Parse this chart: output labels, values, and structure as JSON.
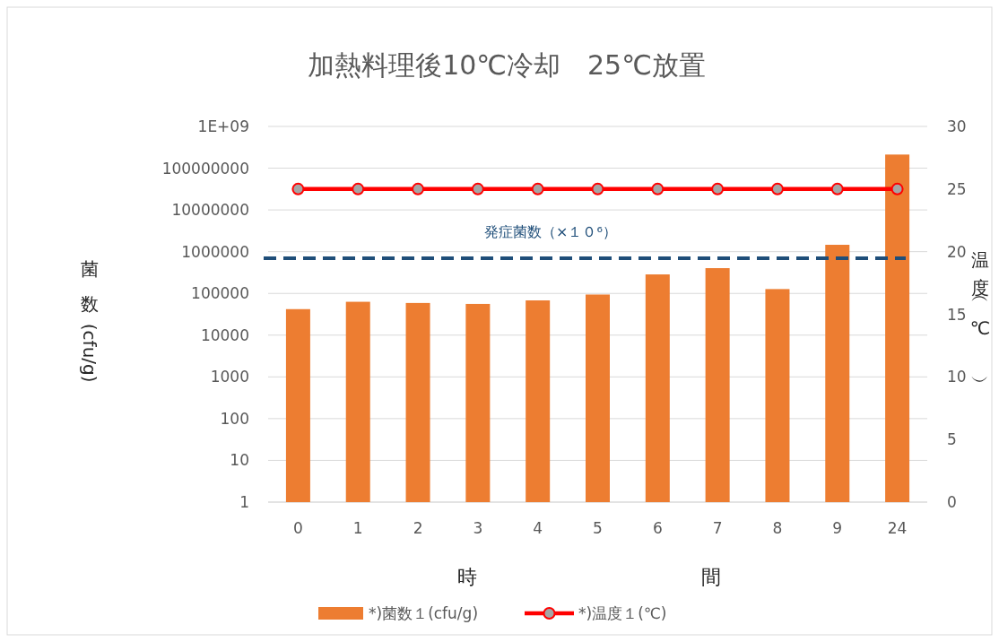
{
  "chart_data": {
    "type": "bar",
    "title": "加熱料理後10℃冷却　25℃放置",
    "xlabel": "時間",
    "ylabel": "菌数 (cfu/g)",
    "y2label": "温度（℃）",
    "categories": [
      "0",
      "1",
      "2",
      "3",
      "4",
      "5",
      "6",
      "7",
      "8",
      "9",
      "24"
    ],
    "series": [
      {
        "name": "*)菌数１(cfu/g)",
        "color": "#ed7d31",
        "values": [
          42000,
          63000,
          59000,
          56000,
          68000,
          94000,
          285000,
          403000,
          127000,
          1460000,
          212000000
        ]
      },
      {
        "name": "*)温度１(℃)",
        "type": "line",
        "axis": "y2",
        "color": "#ff0000",
        "marker": "circle",
        "values": [
          25,
          25,
          25,
          25,
          25,
          25,
          25,
          25,
          25,
          25,
          25
        ]
      }
    ],
    "log": "y",
    "ylim": [
      1,
      1000000000
    ],
    "yticks": [
      1,
      10,
      100,
      1000,
      10000,
      100000,
      1000000,
      10000000,
      100000000,
      {
        "value": 1000000000,
        "label": "1E+09"
      }
    ],
    "y2lim": [
      0,
      30
    ],
    "y2ticks": [
      0,
      5,
      10,
      15,
      20,
      25,
      30
    ],
    "ref_lines": [
      {
        "axis": "y",
        "value": 700000,
        "label": "発症菌数（×１０⁶）",
        "color": "#1f4e79",
        "line_style": "dashed"
      }
    ],
    "grid": "y",
    "legend": "bottom"
  }
}
